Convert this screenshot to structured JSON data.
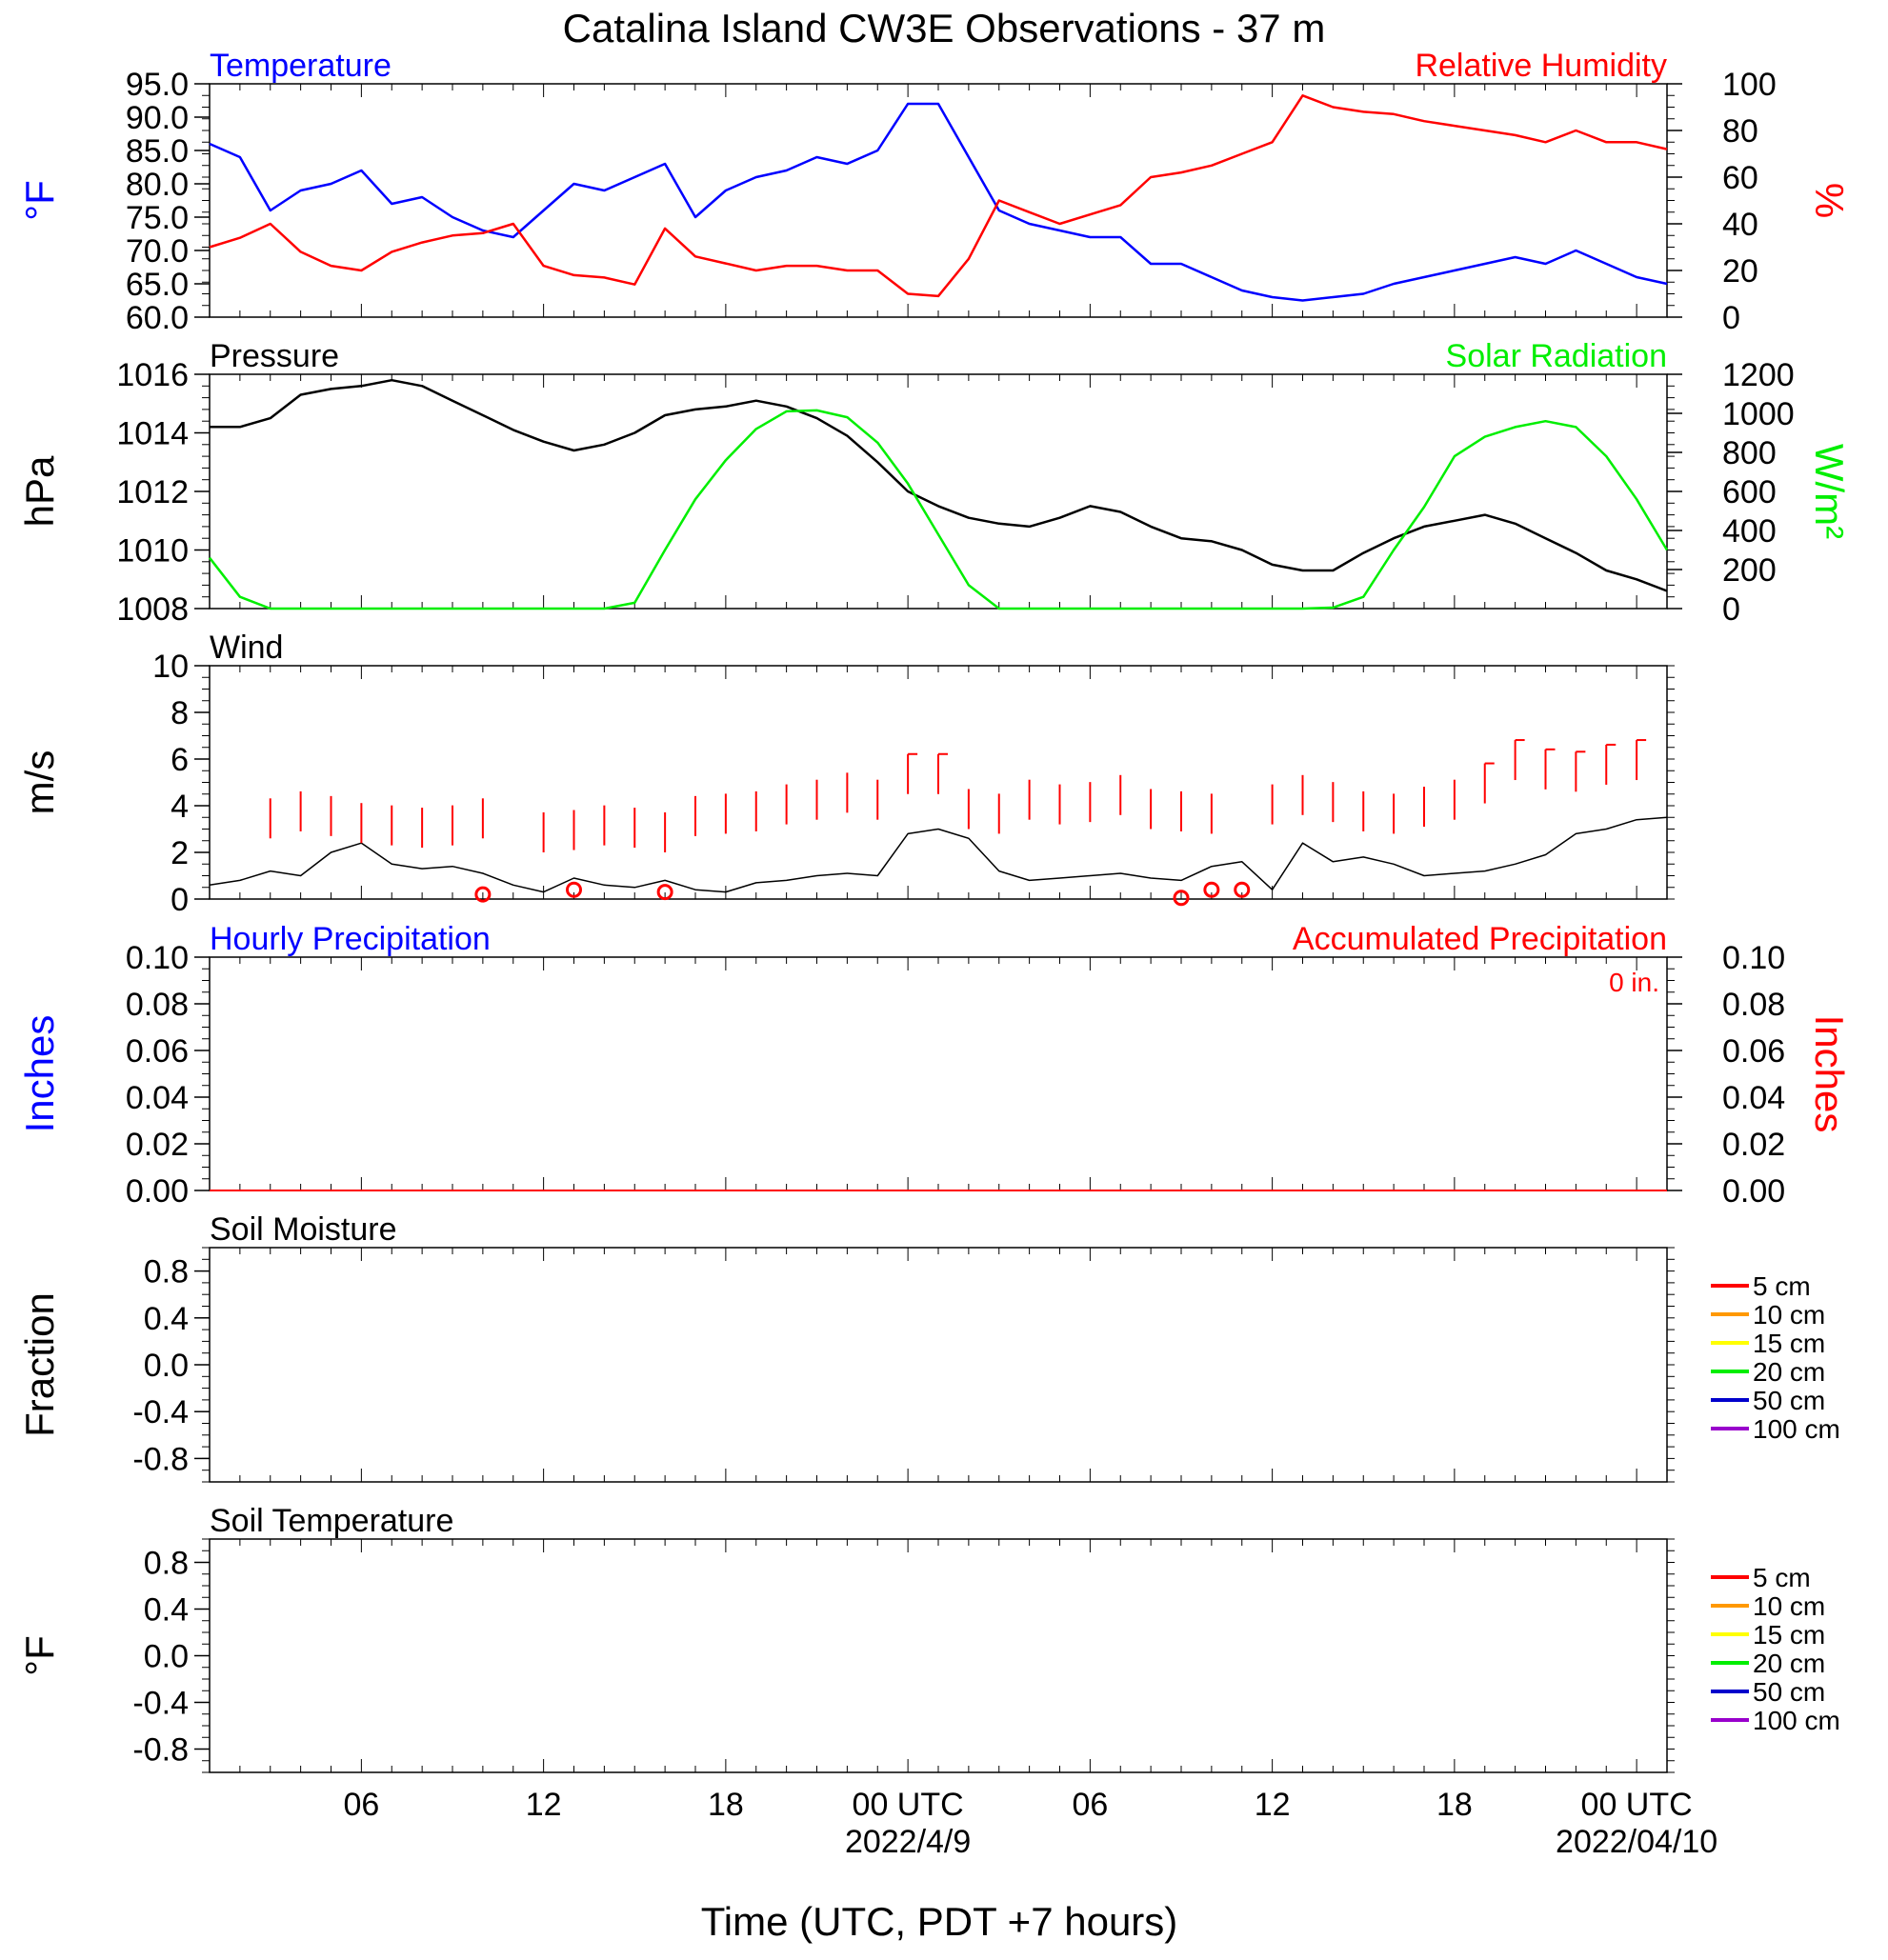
{
  "page": {
    "title": "Catalina Island CW3E Observations - 37 m",
    "x_axis_title": "Time (UTC, PDT +7 hours)",
    "x_ticks": [
      {
        "label": "06",
        "date": ""
      },
      {
        "label": "12",
        "date": ""
      },
      {
        "label": "18",
        "date": ""
      },
      {
        "label": "00 UTC",
        "date": "2022/4/9"
      },
      {
        "label": "06",
        "date": ""
      },
      {
        "label": "12",
        "date": ""
      },
      {
        "label": "18",
        "date": ""
      },
      {
        "label": "00 UTC",
        "date": "2022/04/10"
      }
    ]
  },
  "colors": {
    "temperature": "#0000ff",
    "humidity": "#ff0000",
    "pressure": "#000000",
    "solar": "#00ee00",
    "wind": "#000000",
    "gust": "#ff0000",
    "precip_hourly": "#0000ff",
    "precip_accum": "#ff0000"
  },
  "chart_data": [
    {
      "id": "temp-rh",
      "type": "line",
      "left_title": "Temperature",
      "right_title": "Relative Humidity",
      "ylabel_left": "°F",
      "ylabel_right": "%",
      "ylim_left": [
        60,
        95
      ],
      "ylim_right": [
        0,
        100
      ],
      "yticks_left": [
        "95.0",
        "90.0",
        "85.0",
        "80.0",
        "75.0",
        "70.0",
        "65.0",
        "60.0"
      ],
      "yticks_right": [
        "100",
        "80",
        "60",
        "40",
        "20",
        "0"
      ],
      "x_hours": [
        0,
        1,
        2,
        3,
        4,
        5,
        6,
        7,
        8,
        9,
        10,
        11,
        12,
        13,
        14,
        15,
        16,
        17,
        18,
        19,
        20,
        21,
        22,
        23,
        24,
        25,
        26,
        27,
        28,
        29,
        30,
        31,
        32,
        33,
        34,
        35,
        36,
        37,
        38,
        39,
        40,
        41,
        42,
        43,
        44,
        45,
        46,
        47,
        48
      ],
      "series": [
        {
          "name": "Temperature",
          "axis": "left",
          "values": [
            86,
            84,
            76,
            79,
            80,
            82,
            77,
            78,
            75,
            73,
            72,
            76,
            80,
            79,
            81,
            83,
            75,
            79,
            81,
            82,
            84,
            83,
            85,
            92,
            92,
            84,
            76,
            74,
            73,
            72,
            72,
            68,
            68,
            66,
            64,
            63,
            62.5,
            63,
            63.5,
            65,
            66,
            67,
            68,
            69,
            68,
            70,
            68,
            66,
            65
          ]
        },
        {
          "name": "Relative Humidity",
          "axis": "right",
          "values": [
            30,
            34,
            40,
            28,
            22,
            20,
            28,
            32,
            35,
            36,
            40,
            22,
            18,
            17,
            14,
            38,
            26,
            23,
            20,
            22,
            22,
            20,
            20,
            10,
            9,
            25,
            50,
            45,
            40,
            44,
            48,
            60,
            62,
            65,
            70,
            75,
            95,
            90,
            88,
            87,
            84,
            82,
            80,
            78,
            75,
            80,
            75,
            75,
            72
          ]
        }
      ]
    },
    {
      "id": "pressure-solar",
      "type": "line",
      "left_title": "Pressure",
      "right_title": "Solar Radiation",
      "ylabel_left": "hPa",
      "ylabel_right": "W/m²",
      "ylim_left": [
        1008,
        1016
      ],
      "ylim_right": [
        0,
        1200
      ],
      "yticks_left": [
        "1016",
        "1014",
        "1012",
        "1010",
        "1008"
      ],
      "yticks_right": [
        "1200",
        "1000",
        "800",
        "600",
        "400",
        "200",
        "0"
      ],
      "x_hours": [
        0,
        1,
        2,
        3,
        4,
        5,
        6,
        7,
        8,
        9,
        10,
        11,
        12,
        13,
        14,
        15,
        16,
        17,
        18,
        19,
        20,
        21,
        22,
        23,
        24,
        25,
        26,
        27,
        28,
        29,
        30,
        31,
        32,
        33,
        34,
        35,
        36,
        37,
        38,
        39,
        40,
        41,
        42,
        43,
        44,
        45,
        46,
        47,
        48
      ],
      "series": [
        {
          "name": "Pressure",
          "axis": "left",
          "values": [
            1014.2,
            1014.2,
            1014.5,
            1015.3,
            1015.5,
            1015.6,
            1015.8,
            1015.6,
            1015.1,
            1014.6,
            1014.1,
            1013.7,
            1013.4,
            1013.6,
            1014.0,
            1014.6,
            1014.8,
            1014.9,
            1015.1,
            1014.9,
            1014.5,
            1013.9,
            1013.0,
            1012.0,
            1011.5,
            1011.1,
            1010.9,
            1010.8,
            1011.1,
            1011.5,
            1011.3,
            1010.8,
            1010.4,
            1010.3,
            1010.0,
            1009.5,
            1009.3,
            1009.3,
            1009.9,
            1010.4,
            1010.8,
            1011.0,
            1011.2,
            1010.9,
            1010.4,
            1009.9,
            1009.3,
            1009.0,
            1008.6
          ]
        },
        {
          "name": "Solar Radiation",
          "axis": "right",
          "values": [
            260,
            60,
            0,
            0,
            0,
            0,
            0,
            0,
            0,
            0,
            0,
            0,
            0,
            0,
            30,
            300,
            560,
            760,
            920,
            1010,
            1015,
            980,
            850,
            640,
            380,
            120,
            0,
            0,
            0,
            0,
            0,
            0,
            0,
            0,
            0,
            0,
            0,
            5,
            60,
            300,
            520,
            780,
            880,
            930,
            960,
            930,
            780,
            560,
            300
          ]
        }
      ]
    },
    {
      "id": "wind",
      "type": "line",
      "left_title": "Wind",
      "ylabel_left": "m/s",
      "ylim_left": [
        0,
        10
      ],
      "yticks_left": [
        "10",
        "8",
        "6",
        "4",
        "2",
        "0"
      ],
      "x_hours": [
        0,
        1,
        2,
        3,
        4,
        5,
        6,
        7,
        8,
        9,
        10,
        11,
        12,
        13,
        14,
        15,
        16,
        17,
        18,
        19,
        20,
        21,
        22,
        23,
        24,
        25,
        26,
        27,
        28,
        29,
        30,
        31,
        32,
        33,
        34,
        35,
        36,
        37,
        38,
        39,
        40,
        41,
        42,
        43,
        44,
        45,
        46,
        47,
        48
      ],
      "series": [
        {
          "name": "Wind speed",
          "values": [
            0.6,
            0.8,
            1.2,
            1.0,
            2.0,
            2.4,
            1.5,
            1.3,
            1.4,
            1.1,
            0.6,
            0.3,
            0.9,
            0.6,
            0.5,
            0.8,
            0.4,
            0.3,
            0.7,
            0.8,
            1.0,
            1.1,
            1.0,
            2.8,
            3.0,
            2.6,
            1.2,
            0.8,
            0.9,
            1.0,
            1.1,
            0.9,
            0.8,
            1.4,
            1.6,
            0.4,
            2.4,
            1.6,
            1.8,
            1.5,
            1.0,
            1.1,
            1.2,
            1.5,
            1.9,
            2.8,
            3.0,
            3.4,
            3.5
          ]
        }
      ],
      "gust_hours": [
        2,
        3,
        4,
        5,
        6,
        7,
        8,
        9,
        11,
        12,
        13,
        14,
        15,
        16,
        17,
        18,
        19,
        20,
        21,
        22,
        23,
        24,
        25,
        26,
        27,
        28,
        29,
        30,
        31,
        32,
        33,
        35,
        36,
        37,
        38,
        39,
        40,
        41,
        42,
        43,
        44,
        45,
        46,
        47
      ],
      "gust_values": [
        2.6,
        2.9,
        2.7,
        2.4,
        2.3,
        2.2,
        2.3,
        2.6,
        2.0,
        2.1,
        2.3,
        2.2,
        2.0,
        2.7,
        2.8,
        2.9,
        3.2,
        3.4,
        3.7,
        3.4,
        4.5,
        4.5,
        3.0,
        2.8,
        3.4,
        3.2,
        3.3,
        3.6,
        3.0,
        2.9,
        2.8,
        3.2,
        3.6,
        3.3,
        2.9,
        2.8,
        3.1,
        3.4,
        4.1,
        5.1,
        4.7,
        4.6,
        4.9,
        5.1
      ],
      "calm_hours": [
        9,
        12,
        15,
        32,
        33,
        34
      ],
      "calm_values": [
        0.2,
        0.4,
        0.3,
        0.05,
        0.4,
        0.4
      ]
    },
    {
      "id": "precip",
      "type": "line",
      "left_title": "Hourly Precipitation",
      "right_title": "Accumulated Precipitation",
      "annotation": "0 in.",
      "ylabel_left": "Inches",
      "ylabel_right": "Inches",
      "ylim_left": [
        0,
        0.1
      ],
      "ylim_right": [
        0,
        0.1
      ],
      "yticks_left": [
        "0.10",
        "0.08",
        "0.06",
        "0.04",
        "0.02",
        "0.00"
      ],
      "yticks_right": [
        "0.10",
        "0.08",
        "0.06",
        "0.04",
        "0.02",
        "0.00"
      ],
      "x_hours": [
        0,
        48
      ],
      "series": [
        {
          "name": "Hourly Precipitation",
          "values": [
            0,
            0
          ]
        },
        {
          "name": "Accumulated Precipitation",
          "values": [
            0,
            0
          ]
        }
      ]
    },
    {
      "id": "soil-moisture",
      "type": "line",
      "left_title": "Soil Moisture",
      "ylabel_left": "Fraction",
      "ylim_left": [
        -1.0,
        1.0
      ],
      "yticks_left": [
        "0.8",
        "0.4",
        "0.0",
        "-0.4",
        "-0.8"
      ],
      "legend": [
        {
          "label": "5 cm",
          "color": "#ff0000"
        },
        {
          "label": "10 cm",
          "color": "#ff9900"
        },
        {
          "label": "15 cm",
          "color": "#ffff00"
        },
        {
          "label": "20 cm",
          "color": "#00ee00"
        },
        {
          "label": "50 cm",
          "color": "#0000cc"
        },
        {
          "label": "100 cm",
          "color": "#9900cc"
        }
      ],
      "series": []
    },
    {
      "id": "soil-temperature",
      "type": "line",
      "left_title": "Soil Temperature",
      "ylabel_left": "°F",
      "ylim_left": [
        -1.0,
        1.0
      ],
      "yticks_left": [
        "0.8",
        "0.4",
        "0.0",
        "-0.4",
        "-0.8"
      ],
      "legend": [
        {
          "label": "5 cm",
          "color": "#ff0000"
        },
        {
          "label": "10 cm",
          "color": "#ff9900"
        },
        {
          "label": "15 cm",
          "color": "#ffff00"
        },
        {
          "label": "20 cm",
          "color": "#00ee00"
        },
        {
          "label": "50 cm",
          "color": "#0000cc"
        },
        {
          "label": "100 cm",
          "color": "#9900cc"
        }
      ],
      "series": []
    }
  ]
}
